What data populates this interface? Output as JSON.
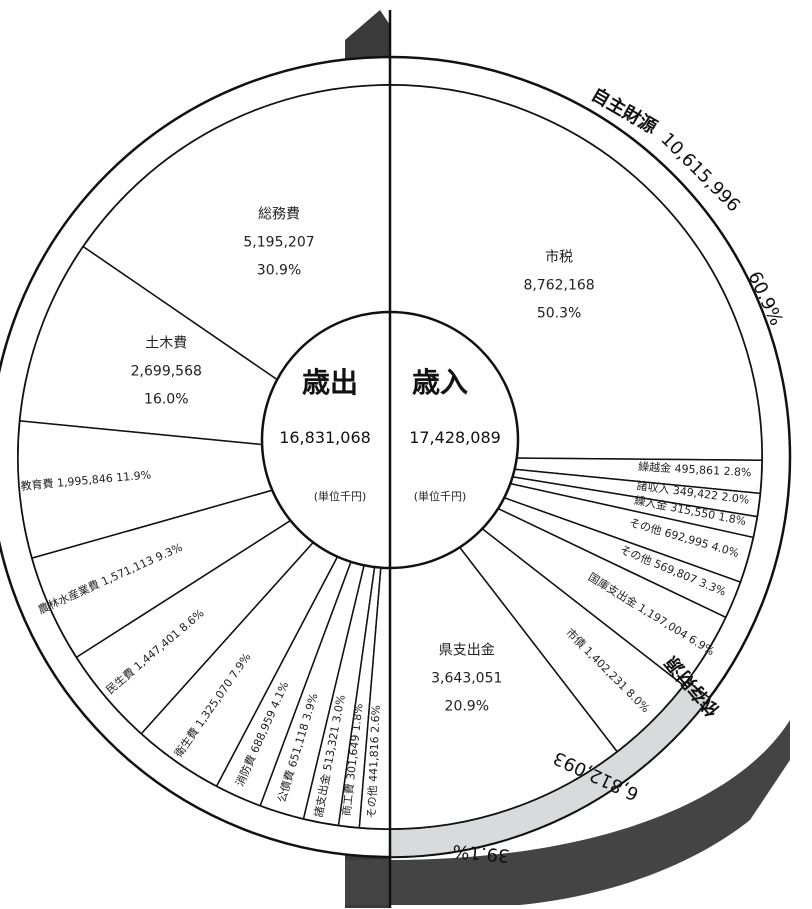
{
  "expenditure": {
    "title": "歳出",
    "total": "16,831,068",
    "unit": "(単位千円)"
  },
  "revenue": {
    "title": "歳入",
    "total": "17,428,089",
    "unit": "(単位千円)"
  },
  "band": {
    "own_title": "自主財源",
    "own_value": "10,615,996",
    "own_pct": "60.9%",
    "dep_title": "依存財源",
    "dep_value": "6,812,093",
    "dep_pct": "39.1%"
  },
  "chart_data": [
    {
      "type": "pie",
      "title": "歳出",
      "total": 16831068,
      "unit": "千円",
      "slices": [
        {
          "name": "総務費",
          "value": 5195207,
          "pct": 30.9,
          "value_label": "5,195,207",
          "pct_label": "30.9%"
        },
        {
          "name": "土木費",
          "value": 2699568,
          "pct": 16.0,
          "value_label": "2,699,568",
          "pct_label": "16.0%"
        },
        {
          "name": "教育費",
          "value": 1995846,
          "pct": 11.9,
          "value_label": "1,995,846",
          "pct_label": "11.9%"
        },
        {
          "name": "農林水産業費",
          "value": 1571113,
          "pct": 9.3,
          "value_label": "1,571,113",
          "pct_label": "9.3%"
        },
        {
          "name": "民生費",
          "value": 1447401,
          "pct": 8.6,
          "value_label": "1,447,401",
          "pct_label": "8.6%"
        },
        {
          "name": "衛生費",
          "value": 1325070,
          "pct": 7.9,
          "value_label": "1,325,070",
          "pct_label": "7.9%"
        },
        {
          "name": "消防費",
          "value": 688959,
          "pct": 4.1,
          "value_label": "688,959",
          "pct_label": "4.1%"
        },
        {
          "name": "公債費",
          "value": 651118,
          "pct": 3.9,
          "value_label": "651,118",
          "pct_label": "3.9%"
        },
        {
          "name": "諸支出金",
          "value": 513321,
          "pct": 3.0,
          "value_label": "513,321",
          "pct_label": "3.0%"
        },
        {
          "name": "商工費",
          "value": 301649,
          "pct": 1.8,
          "value_label": "301,649",
          "pct_label": "1.8%"
        },
        {
          "name": "その他",
          "value": 441816,
          "pct": 2.6,
          "value_label": "441,816",
          "pct_label": "2.6%"
        }
      ]
    },
    {
      "type": "pie",
      "title": "歳入",
      "total": 17428089,
      "unit": "千円",
      "slices": [
        {
          "name": "市税",
          "value": 8762168,
          "pct": 50.3,
          "value_label": "8,762,168",
          "pct_label": "50.3%"
        },
        {
          "name": "繰越金",
          "value": 495861,
          "pct": 2.8,
          "value_label": "495,861",
          "pct_label": "2.8%"
        },
        {
          "name": "諸収入",
          "value": 349422,
          "pct": 2.0,
          "value_label": "349,422",
          "pct_label": "2.0%"
        },
        {
          "name": "繰入金",
          "value": 315550,
          "pct": 1.8,
          "value_label": "315,550",
          "pct_label": "1.8%"
        },
        {
          "name": "その他",
          "value": 692995,
          "pct": 4.0,
          "value_label": "692,995",
          "pct_label": "4.0%"
        },
        {
          "name": "その他",
          "value": 569807,
          "pct": 3.3,
          "value_label": "569,807",
          "pct_label": "3.3%"
        },
        {
          "name": "国庫支出金",
          "value": 1197004,
          "pct": 6.9,
          "value_label": "1,197,004",
          "pct_label": "6.9%"
        },
        {
          "name": "市債",
          "value": 1402231,
          "pct": 8.0,
          "value_label": "1,402,231",
          "pct_label": "8.0%"
        },
        {
          "name": "県支出金",
          "value": 3643051,
          "pct": 20.9,
          "value_label": "3,643,051",
          "pct_label": "20.9%"
        }
      ]
    }
  ]
}
